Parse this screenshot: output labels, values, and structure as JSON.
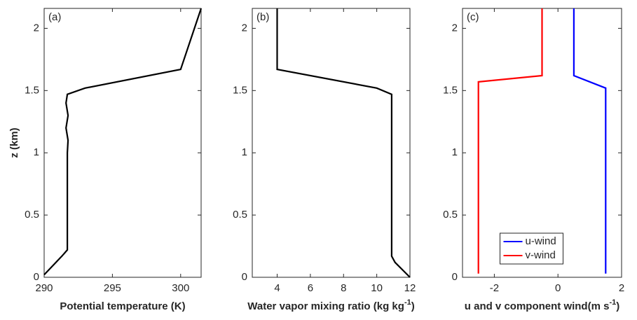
{
  "chart_data": [
    {
      "type": "line",
      "label": "(a)",
      "xlabel": "Potential temperature (K)",
      "ylabel": "z (km)",
      "xlim": [
        290,
        301.5
      ],
      "xticks": [
        290,
        295,
        300
      ],
      "ylim": [
        0,
        2.16
      ],
      "yticks": [
        0,
        0.5,
        1,
        1.5,
        2
      ],
      "series": [
        {
          "color": "#000000",
          "x": [
            290,
            291.3,
            291.7,
            291.7,
            291.75,
            291.6,
            291.75,
            291.6,
            291.7,
            293,
            300,
            301.5
          ],
          "values": [
            0.02,
            0.17,
            0.22,
            1.0,
            1.1,
            1.2,
            1.3,
            1.4,
            1.47,
            1.52,
            1.67,
            2.16
          ]
        }
      ]
    },
    {
      "type": "line",
      "label": "(b)",
      "xlabel": "Water vapor mixing ratio (kg kg",
      "xlabel_sup": "-1",
      "xlabel_end": ")",
      "xlim": [
        2.5,
        12
      ],
      "xticks": [
        4,
        6,
        8,
        10,
        12
      ],
      "ylim": [
        0,
        2.16
      ],
      "yticks": [
        0,
        0.5,
        1,
        1.5,
        2
      ],
      "series": [
        {
          "color": "#000000",
          "x": [
            12,
            11.1,
            10.9,
            10.9,
            10,
            4,
            4
          ],
          "values": [
            0.0,
            0.12,
            0.17,
            1.47,
            1.52,
            1.67,
            2.16
          ]
        }
      ]
    },
    {
      "type": "line",
      "label": "(c)",
      "xlabel": "u and v component wind(m s",
      "xlabel_sup": "-1",
      "xlabel_end": ")",
      "xlim": [
        -3,
        2
      ],
      "xticks": [
        -2,
        0,
        2
      ],
      "ylim": [
        0,
        2.16
      ],
      "yticks": [
        0,
        0.5,
        1,
        1.5,
        2
      ],
      "legend": "lower center",
      "series": [
        {
          "name": "u-wind",
          "color": "#0000ff",
          "x": [
            1.5,
            1.5,
            0.5,
            0.5
          ],
          "values": [
            0.03,
            1.52,
            1.62,
            2.16
          ]
        },
        {
          "name": "v-wind",
          "color": "#ff0000",
          "x": [
            -2.5,
            -2.5,
            -0.5,
            -0.5
          ],
          "values": [
            0.03,
            1.57,
            1.62,
            2.16
          ]
        }
      ]
    }
  ]
}
